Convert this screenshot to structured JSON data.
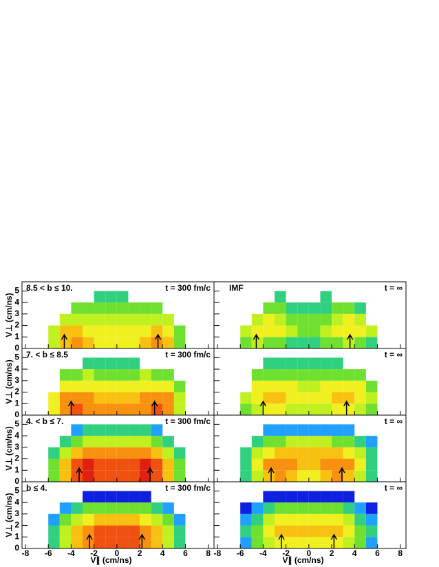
{
  "chart_data": {
    "type": "heatmap",
    "x_label": "V∥ (cm/ns)",
    "y_label": "V⊥ (cm/ns)",
    "xlim": [
      -8.3,
      8.5
    ],
    "ylim": [
      0,
      5.8
    ],
    "xticks": [
      -8,
      -6,
      -4,
      -2,
      0,
      2,
      4,
      6,
      8
    ],
    "yticks": [
      0,
      1,
      2,
      3,
      4,
      5
    ],
    "xbins": [
      -7,
      -6,
      -5,
      -4,
      -3,
      -2,
      -1,
      0,
      1,
      2,
      3,
      4,
      5,
      6,
      7
    ],
    "ybins": [
      0,
      1,
      2,
      3,
      4,
      5
    ],
    "palette": [
      "#1020e0",
      "#20a0ff",
      "#30d080",
      "#70e030",
      "#c0f020",
      "#f0f020",
      "#f8c010",
      "#f89010",
      "#f05010",
      "#e02010"
    ],
    "panels": [
      {
        "title": "8.5 < b ≤ 10.",
        "time": "t = 300 fm/c",
        "arrows": [
          -4.6,
          3.6
        ],
        "z": [
          [
            0,
            5,
            7,
            8,
            7,
            6,
            6,
            6,
            6,
            7,
            8,
            7,
            4,
            0
          ],
          [
            0,
            5,
            7,
            7,
            6,
            6,
            6,
            6,
            6,
            6,
            7,
            6,
            4,
            0
          ],
          [
            0,
            0,
            5,
            5,
            5,
            5,
            5,
            5,
            5,
            5,
            5,
            5,
            0,
            0
          ],
          [
            0,
            0,
            0,
            4,
            4,
            4,
            4,
            4,
            4,
            4,
            4,
            0,
            0,
            0
          ],
          [
            0,
            0,
            0,
            0,
            0,
            3,
            3,
            3,
            0,
            0,
            0,
            0,
            0,
            0
          ]
        ]
      },
      {
        "title": "IMF",
        "time": "t = ∞",
        "arrows": [
          -4.6,
          3.6
        ],
        "z": [
          [
            0,
            4,
            5,
            4,
            4,
            3,
            3,
            3,
            4,
            4,
            5,
            4,
            3,
            0
          ],
          [
            0,
            5,
            6,
            6,
            6,
            5,
            4,
            4,
            5,
            6,
            6,
            6,
            5,
            0
          ],
          [
            0,
            0,
            5,
            6,
            5,
            4,
            4,
            4,
            4,
            5,
            6,
            5,
            0,
            0
          ],
          [
            0,
            0,
            0,
            4,
            4,
            3,
            3,
            3,
            3,
            4,
            4,
            3,
            0,
            0
          ],
          [
            0,
            0,
            0,
            0,
            3,
            0,
            0,
            0,
            3,
            0,
            0,
            0,
            0,
            0
          ]
        ]
      },
      {
        "title": "7. < b ≤ 8.5",
        "time": "t = 300 fm/c",
        "arrows": [
          -4.0,
          3.3
        ],
        "z": [
          [
            0,
            6,
            8,
            9,
            8,
            8,
            8,
            8,
            8,
            8,
            9,
            8,
            5,
            0
          ],
          [
            0,
            6,
            8,
            8,
            8,
            7,
            7,
            7,
            7,
            8,
            8,
            8,
            5,
            0
          ],
          [
            0,
            0,
            6,
            6,
            6,
            6,
            6,
            6,
            6,
            6,
            6,
            6,
            4,
            0
          ],
          [
            0,
            0,
            4,
            4,
            5,
            4,
            4,
            4,
            4,
            5,
            4,
            4,
            0,
            0
          ],
          [
            0,
            0,
            0,
            0,
            3,
            3,
            3,
            3,
            3,
            0,
            0,
            0,
            0,
            0
          ]
        ]
      },
      {
        "time": "t = ∞",
        "arrows": [
          -4.0,
          3.3
        ],
        "z": [
          [
            0,
            4,
            5,
            6,
            6,
            5,
            5,
            5,
            5,
            6,
            6,
            5,
            4,
            0
          ],
          [
            0,
            5,
            6,
            7,
            7,
            6,
            6,
            6,
            6,
            7,
            7,
            6,
            5,
            0
          ],
          [
            0,
            0,
            6,
            6,
            6,
            6,
            5,
            5,
            6,
            6,
            6,
            6,
            4,
            0
          ],
          [
            0,
            0,
            4,
            4,
            4,
            4,
            4,
            4,
            4,
            4,
            4,
            4,
            0,
            0
          ],
          [
            0,
            0,
            0,
            3,
            3,
            3,
            3,
            3,
            3,
            3,
            0,
            0,
            0,
            0
          ]
        ]
      },
      {
        "title": "4. < b ≤ 7.",
        "time": "t = 300 fm/c",
        "arrows": [
          -3.3,
          2.9
        ],
        "z": [
          [
            0,
            4,
            7,
            9,
            10,
            9,
            9,
            9,
            9,
            10,
            9,
            7,
            4,
            0
          ],
          [
            0,
            4,
            7,
            9,
            10,
            9,
            9,
            9,
            9,
            10,
            9,
            7,
            4,
            0
          ],
          [
            0,
            3,
            5,
            7,
            8,
            8,
            8,
            8,
            8,
            8,
            7,
            5,
            3,
            0
          ],
          [
            0,
            0,
            3,
            4,
            5,
            5,
            5,
            5,
            5,
            5,
            4,
            3,
            0,
            0
          ],
          [
            0,
            0,
            0,
            2,
            3,
            3,
            3,
            3,
            3,
            3,
            2,
            0,
            0,
            0
          ]
        ]
      },
      {
        "time": "t = ∞",
        "arrows": [
          -3.3,
          2.9
        ],
        "z": [
          [
            0,
            3,
            5,
            7,
            8,
            7,
            6,
            6,
            7,
            8,
            7,
            5,
            3,
            0
          ],
          [
            0,
            3,
            6,
            8,
            8,
            8,
            7,
            7,
            8,
            8,
            8,
            6,
            3,
            0
          ],
          [
            0,
            3,
            5,
            6,
            7,
            7,
            7,
            7,
            7,
            7,
            6,
            5,
            3,
            0
          ],
          [
            0,
            0,
            3,
            4,
            4,
            5,
            5,
            5,
            5,
            4,
            4,
            3,
            2,
            0
          ],
          [
            0,
            0,
            0,
            2,
            2,
            2,
            2,
            2,
            2,
            2,
            2,
            0,
            0,
            0
          ]
        ]
      },
      {
        "title": "b ≤ 4.",
        "time": "t = 300 fm/c",
        "arrows": [
          -2.4,
          2.2
        ],
        "z": [
          [
            0,
            3,
            5,
            7,
            8,
            9,
            9,
            9,
            9,
            8,
            7,
            5,
            3,
            0
          ],
          [
            0,
            3,
            5,
            7,
            8,
            9,
            9,
            9,
            9,
            8,
            7,
            5,
            3,
            0
          ],
          [
            0,
            2,
            4,
            5,
            6,
            7,
            7,
            7,
            7,
            6,
            5,
            4,
            2,
            0
          ],
          [
            0,
            0,
            2,
            3,
            4,
            4,
            4,
            4,
            4,
            4,
            3,
            2,
            0,
            0
          ],
          [
            0,
            0,
            0,
            0,
            1,
            1,
            1,
            1,
            1,
            1,
            0,
            0,
            0,
            0
          ]
        ]
      },
      {
        "time": "t = ∞",
        "arrows": [
          -2.4,
          2.2
        ],
        "z": [
          [
            0,
            2,
            4,
            5,
            6,
            6,
            6,
            6,
            6,
            6,
            5,
            4,
            2,
            0
          ],
          [
            0,
            3,
            4,
            6,
            7,
            7,
            7,
            7,
            7,
            7,
            6,
            4,
            3,
            0
          ],
          [
            0,
            2,
            3,
            5,
            6,
            6,
            6,
            6,
            6,
            6,
            5,
            3,
            2,
            0
          ],
          [
            0,
            1,
            2,
            3,
            4,
            4,
            4,
            4,
            4,
            4,
            3,
            2,
            1,
            0
          ],
          [
            0,
            0,
            0,
            1,
            1,
            1,
            1,
            1,
            1,
            1,
            1,
            0,
            0,
            0
          ]
        ]
      }
    ]
  }
}
